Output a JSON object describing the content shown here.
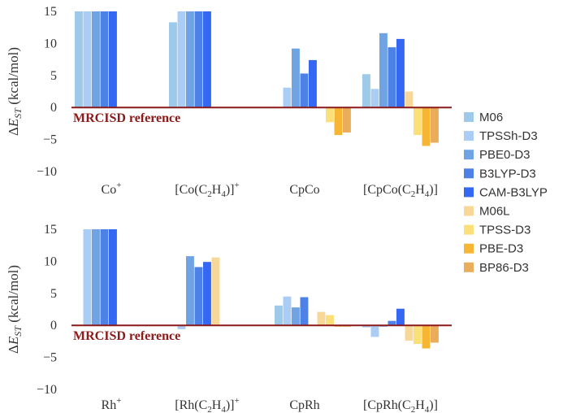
{
  "chart_data": [
    {
      "type": "bar",
      "categories": [
        "Co⁺",
        "[Co(C₂H₄)]⁺",
        "CpCo",
        "[CpCo(C₂H₄)]"
      ],
      "category_labels": [
        {
          "base": "Co",
          "sup": "+"
        },
        {
          "pre": "[Co(C",
          "sub1": "2",
          "mid": "H",
          "sub2": "4",
          "post": ")]",
          "sup": "+"
        },
        {
          "base": "CpCo"
        },
        {
          "pre": "[CpCo(C",
          "sub1": "2",
          "mid": "H",
          "sub2": "4",
          "post": ")]"
        }
      ],
      "series": [
        {
          "name": "M06",
          "values": [
            15,
            13.3,
            0,
            5.2
          ]
        },
        {
          "name": "TPSSh-D3",
          "values": [
            15,
            15,
            3.1,
            2.9
          ]
        },
        {
          "name": "PBE0-D3",
          "values": [
            15,
            15,
            9.2,
            11.6
          ]
        },
        {
          "name": "B3LYP-D3",
          "values": [
            15,
            15,
            5.3,
            9.4
          ]
        },
        {
          "name": "CAM-B3LYP",
          "values": [
            15,
            15,
            7.4,
            10.7
          ]
        },
        {
          "name": "M06L",
          "values": [
            0,
            0,
            0,
            2.5
          ]
        },
        {
          "name": "TPSS-D3",
          "values": [
            0,
            0,
            -2.3,
            -4.3
          ]
        },
        {
          "name": "PBE-D3",
          "values": [
            0,
            0,
            -4.3,
            -6.0
          ]
        },
        {
          "name": "BP86-D3",
          "values": [
            0,
            0,
            -3.9,
            -5.5
          ]
        }
      ],
      "ylabel": {
        "pre": "Δ",
        "italic": "E",
        "sub": "ST",
        "post": " (kcal/mol)"
      },
      "ylim": [
        -10,
        15
      ],
      "yticks": [
        "15",
        "10",
        "5",
        "0",
        "−5",
        "−10"
      ],
      "reference_label": "MRCISD reference",
      "reference_value": 0
    },
    {
      "type": "bar",
      "categories": [
        "Rh⁺",
        "[Rh(C₂H₄)]⁺",
        "CpRh",
        "[CpRh(C₂H₄)]"
      ],
      "category_labels": [
        {
          "base": "Rh",
          "sup": "+"
        },
        {
          "pre": "[Rh(C",
          "sub1": "2",
          "mid": "H",
          "sub2": "4",
          "post": ")]",
          "sup": "+"
        },
        {
          "base": "CpRh"
        },
        {
          "pre": "[CpRh(C",
          "sub1": "2",
          "mid": "H",
          "sub2": "4",
          "post": ")]"
        }
      ],
      "series": [
        {
          "name": "M06",
          "values": [
            0,
            0,
            3.1,
            -0.3
          ]
        },
        {
          "name": "TPSSh-D3",
          "values": [
            15,
            -0.6,
            4.5,
            -1.8
          ]
        },
        {
          "name": "PBE0-D3",
          "values": [
            15,
            10.8,
            2.8,
            -0.2
          ]
        },
        {
          "name": "B3LYP-D3",
          "values": [
            15,
            9.1,
            4.4,
            0.7
          ]
        },
        {
          "name": "CAM-B3LYP",
          "values": [
            15,
            9.9,
            0,
            2.6
          ]
        },
        {
          "name": "M06L",
          "values": [
            0,
            10.6,
            2.1,
            -2.4
          ]
        },
        {
          "name": "TPSS-D3",
          "values": [
            0,
            0,
            1.6,
            -2.9
          ]
        },
        {
          "name": "PBE-D3",
          "values": [
            0,
            0,
            -0.2,
            -3.6
          ]
        },
        {
          "name": "BP86-D3",
          "values": [
            0,
            0,
            -0.2,
            -2.7
          ]
        }
      ],
      "ylabel": {
        "pre": "Δ",
        "italic": "E",
        "sub": "ST",
        "post": " (kcal/mol)"
      },
      "ylim": [
        -10,
        15
      ],
      "yticks": [
        "15",
        "10",
        "5",
        "0",
        "−5",
        "−10"
      ],
      "reference_label": "MRCISD reference",
      "reference_value": 0
    }
  ],
  "legend": {
    "placement": "right",
    "items": [
      {
        "name": "M06",
        "color": "#9ecae9"
      },
      {
        "name": "TPSSh-D3",
        "color": "#a9cdf5"
      },
      {
        "name": "PBE0-D3",
        "color": "#6fa3e3"
      },
      {
        "name": "B3LYP-D3",
        "color": "#4d81e6"
      },
      {
        "name": "CAM-B3LYP",
        "color": "#3568f2"
      },
      {
        "name": "M06L",
        "color": "#f8d898"
      },
      {
        "name": "TPSS-D3",
        "color": "#fbe07a"
      },
      {
        "name": "PBE-D3",
        "color": "#f7b534"
      },
      {
        "name": "BP86-D3",
        "color": "#e9ad5c"
      }
    ]
  },
  "colors": {
    "reference_line": "#8b1a1a",
    "text": "#333333"
  }
}
